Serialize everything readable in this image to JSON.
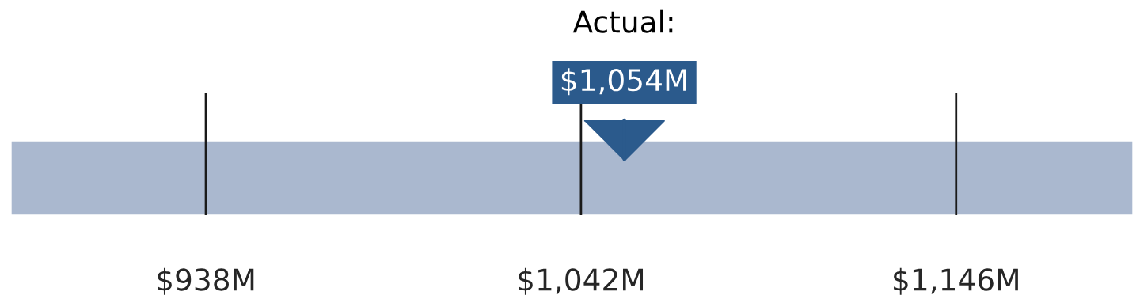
{
  "chart_data": {
    "type": "bar",
    "orientation": "horizontal",
    "categories": [
      null
    ],
    "series": [
      {
        "color": "#aab8cf",
        "values": [
          311
        ],
        "base": [
          884
        ]
      }
    ],
    "ref_lines": [
      {
        "axis": "x",
        "value": 1054,
        "label": "$1,054M",
        "color": "#2b5a8c"
      }
    ],
    "xlim": [
      884,
      1195
    ],
    "xticks": [
      {
        "value": 938,
        "label": "$938M"
      },
      {
        "value": 1042,
        "label": "$1,042M"
      },
      {
        "value": 1146,
        "label": "$1,146M"
      }
    ],
    "grid": "x",
    "annotations": [
      "Actual:"
    ]
  }
}
